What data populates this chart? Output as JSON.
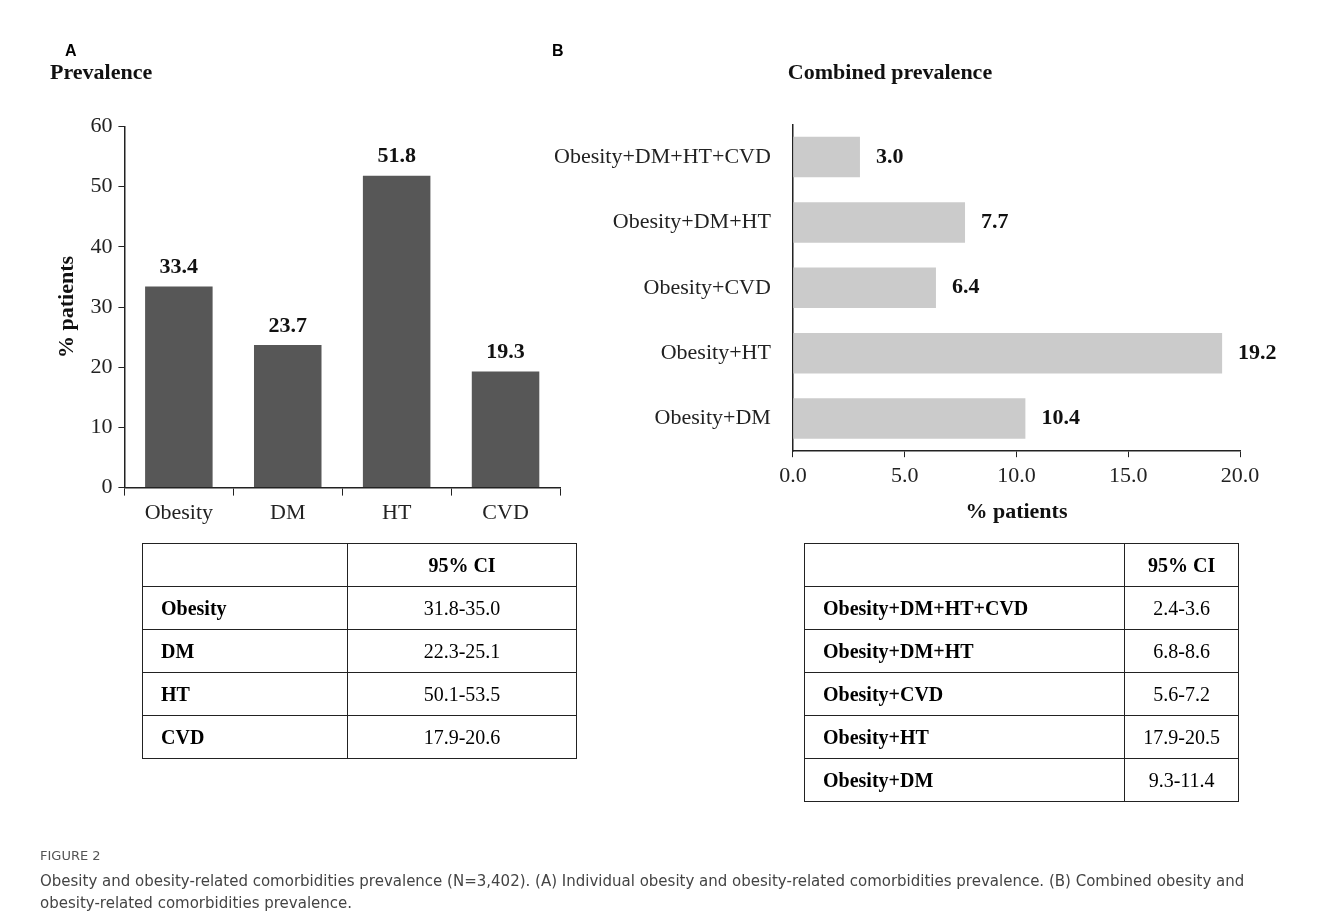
{
  "chart_data": [
    {
      "type": "bar",
      "title": "Prevalence",
      "ylabel": "% patients",
      "categories": [
        "Obesity",
        "DM",
        "HT",
        "CVD"
      ],
      "values": [
        33.4,
        23.7,
        51.8,
        19.3
      ],
      "color": "#575757",
      "value_labels": [
        "33.4",
        "23.7",
        "51.8",
        "19.3"
      ],
      "ylim": [
        0,
        60
      ],
      "yticks": [
        0,
        10,
        20,
        30,
        40,
        50,
        60
      ],
      "grid": false,
      "legend": false,
      "annotations": [
        "A",
        "95% CI",
        "31.8-35.0",
        "22.3-25.1",
        "50.1-53.5",
        "17.9-20.6"
      ]
    },
    {
      "type": "bar",
      "orientation": "horizontal",
      "title": "Combined prevalence",
      "xlabel": "% patients",
      "categories": [
        "Obesity+DM+HT+CVD",
        "Obesity+DM+HT",
        "Obesity+CVD",
        "Obesity+HT",
        "Obesity+DM"
      ],
      "values": [
        3.0,
        7.7,
        6.4,
        19.2,
        10.4
      ],
      "color": "#cbcbcb",
      "value_labels": [
        "3.0",
        "7.7",
        "6.4",
        "19.2",
        "10.4"
      ],
      "xlim": [
        0,
        20
      ],
      "xticks": [
        {
          "value": 0,
          "label": "0.0"
        },
        {
          "value": 5,
          "label": "5.0"
        },
        {
          "value": 10,
          "label": "10.0"
        },
        {
          "value": 15,
          "label": "15.0"
        },
        {
          "value": 20,
          "label": "20.0"
        }
      ],
      "grid": false,
      "legend": false,
      "annotations": [
        "B",
        "95% CI",
        "2.4-3.6",
        "6.8-8.6",
        "5.6-7.2",
        "17.9-20.5",
        "9.3-11.4",
        "FIGURE 2",
        "Obesity and obesity-related comorbidities prevalence (N=3,402). (A) Individual obesity and obesity-related comorbidities prevalence. (B) Combined obesity and obesity-related comorbidities prevalence."
      ]
    }
  ]
}
